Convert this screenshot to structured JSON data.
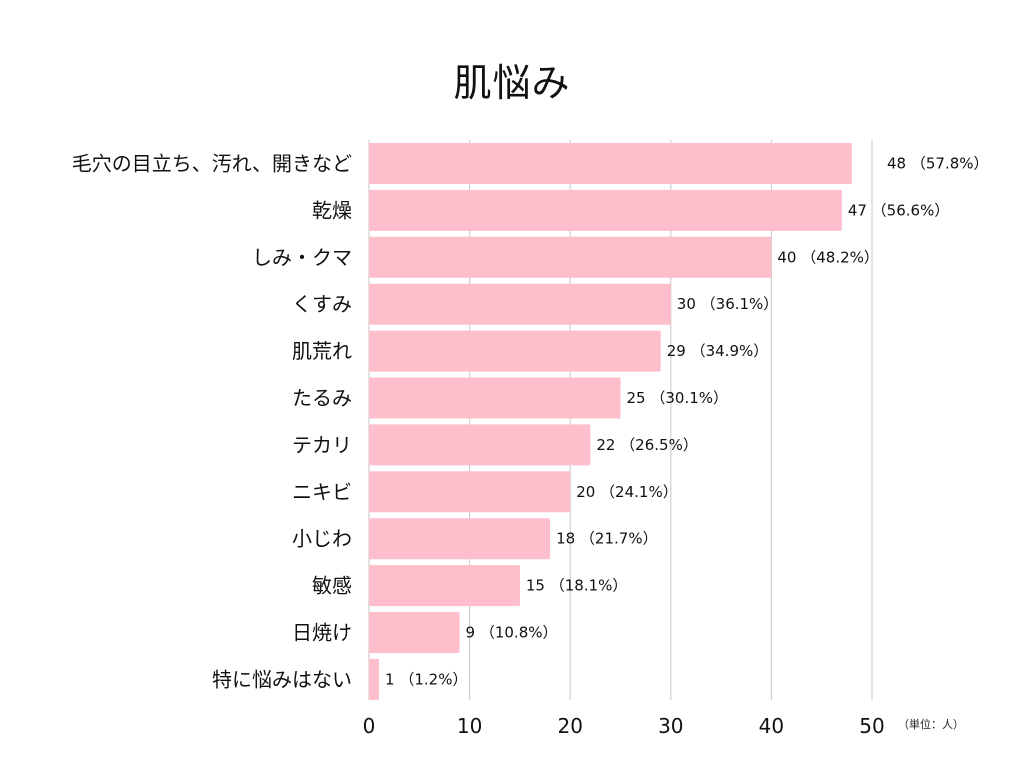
{
  "chart_data": {
    "type": "bar",
    "orientation": "horizontal",
    "title": "肌悩み",
    "unit_note": "（単位：人）",
    "categories": [
      "毛穴の目立ち、汚れ、開きなど",
      "乾燥",
      "しみ・クマ",
      "くすみ",
      "肌荒れ",
      "たるみ",
      "テカリ",
      "ニキビ",
      "小じわ",
      "敏感",
      "日焼け",
      "特に悩みはない"
    ],
    "values": [
      48,
      47,
      40,
      30,
      29,
      25,
      22,
      20,
      18,
      15,
      9,
      1
    ],
    "value_labels": [
      "48 （57.8%）",
      "47 （56.6%）",
      "40 （48.2%）",
      "30 （36.1%）",
      "29 （34.9%）",
      "25 （30.1%）",
      "22 （26.5%）",
      "20 （24.1%）",
      "18 （21.7%）",
      "15 （18.1%）",
      "9 （10.8%）",
      "1 （1.2%）"
    ],
    "x_ticks": [
      0,
      10,
      20,
      30,
      40,
      50
    ],
    "xlim": [
      0,
      50
    ],
    "grid": true,
    "bar_color": "#ffbecb",
    "grid_color": "#d0d0d0"
  }
}
